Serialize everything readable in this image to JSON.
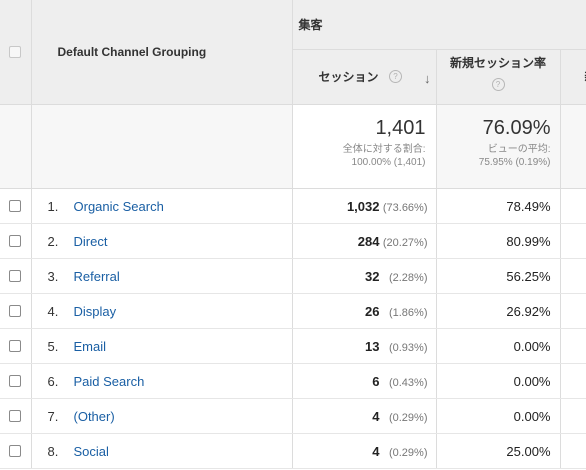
{
  "header": {
    "dimension_label": "Default Channel Grouping",
    "group_label": "集客",
    "sessions_label": "セッション",
    "new_session_rate_label": "新規セッション率",
    "help_glyph": "?",
    "sort_glyph": "↓",
    "next_col_partial": "新"
  },
  "totals": {
    "sessions": "1,401",
    "sessions_sub1": "全体に対する割合:",
    "sessions_sub2": "100.00% (1,401)",
    "new_rate": "76.09%",
    "new_rate_sub1": "ビューの平均:",
    "new_rate_sub2": "75.95% (0.19%)"
  },
  "rows": [
    {
      "num": "1.",
      "channel": "Organic Search",
      "sessions": "1,032",
      "share": "(73.66%)",
      "new_rate": "78.49%"
    },
    {
      "num": "2.",
      "channel": "Direct",
      "sessions": "284",
      "share": "(20.27%)",
      "new_rate": "80.99%"
    },
    {
      "num": "3.",
      "channel": "Referral",
      "sessions": "32",
      "share": "(2.28%)",
      "new_rate": "56.25%"
    },
    {
      "num": "4.",
      "channel": "Display",
      "sessions": "26",
      "share": "(1.86%)",
      "new_rate": "26.92%"
    },
    {
      "num": "5.",
      "channel": "Email",
      "sessions": "13",
      "share": "(0.93%)",
      "new_rate": "0.00%"
    },
    {
      "num": "6.",
      "channel": "Paid Search",
      "sessions": "6",
      "share": "(0.43%)",
      "new_rate": "0.00%"
    },
    {
      "num": "7.",
      "channel": "(Other)",
      "sessions": "4",
      "share": "(0.29%)",
      "new_rate": "0.00%"
    },
    {
      "num": "8.",
      "channel": "Social",
      "sessions": "4",
      "share": "(0.29%)",
      "new_rate": "25.00%"
    }
  ]
}
